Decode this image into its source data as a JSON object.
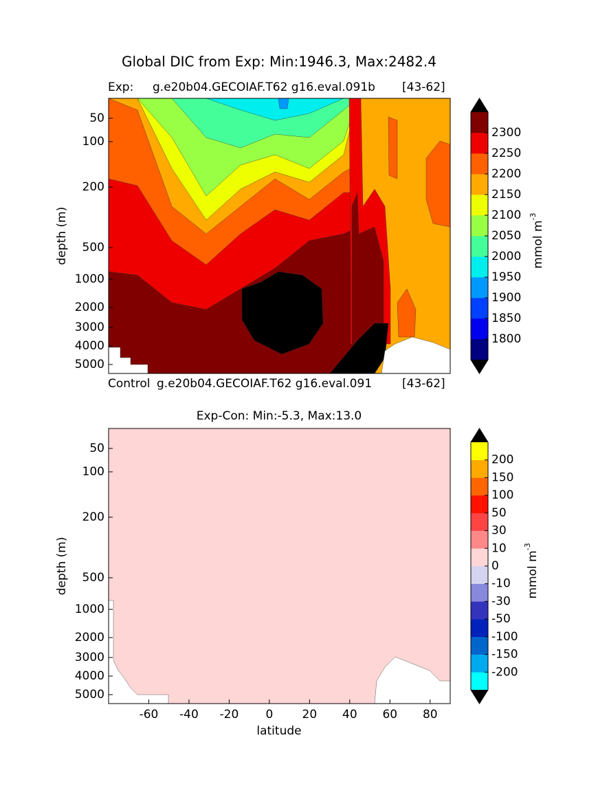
{
  "title": "Global DIC from Exp: Min:1946.3, Max:2482.4",
  "chart_data": [
    {
      "type": "contour",
      "label": "Exp:",
      "run": "g.e20b04.GECOIAF.T62 g16.eval.091b",
      "period": "[43-62]",
      "ylabel": "depth (m)",
      "ylim": [
        0,
        5500
      ],
      "yticks": [
        50,
        100,
        200,
        500,
        1000,
        2000,
        3000,
        4000,
        5000
      ],
      "colorbar_label": "mmol m",
      "colorbar_label_exp": "-3",
      "levels": [
        1800,
        1850,
        1900,
        1950,
        2000,
        2050,
        2100,
        2150,
        2200,
        2250,
        2300
      ],
      "colors": [
        "#000080",
        "#0000ee",
        "#0040ff",
        "#0099ff",
        "#00eeee",
        "#44ff99",
        "#99ff44",
        "#eeff00",
        "#ffaa00",
        "#ff6000",
        "#ee0000",
        "#800000"
      ],
      "extend_colors": [
        "#000000",
        "#000000"
      ]
    },
    {
      "type": "contour",
      "label": "Control",
      "run": "g.e20b04.GECOIAF.T62 g16.eval.091",
      "period": "[43-62]",
      "title": "Exp-Con: Min:-5.3, Max:13.0",
      "ylabel": "depth (m)",
      "xlabel": "latitude",
      "ylim": [
        0,
        5500
      ],
      "yticks": [
        50,
        100,
        200,
        500,
        1000,
        2000,
        3000,
        4000,
        5000
      ],
      "xlim": [
        -80,
        90
      ],
      "xticks": [
        -60,
        -40,
        -20,
        0,
        20,
        40,
        60,
        80
      ],
      "colorbar_label": "mmol m",
      "colorbar_label_exp": "-3",
      "levels": [
        -200,
        -150,
        -100,
        -50,
        -30,
        -10,
        0,
        10,
        30,
        50,
        100,
        150,
        200
      ],
      "colors": [
        "#00ffff",
        "#00aaee",
        "#0066cc",
        "#0022bb",
        "#3333bb",
        "#8888dd",
        "#d4d4f0",
        "#ffd6d6",
        "#ff8888",
        "#ff4444",
        "#ff1100",
        "#ff6600",
        "#ffaa00",
        "#ffff00"
      ],
      "extend_colors": [
        "#000000",
        "#000000"
      ]
    }
  ]
}
